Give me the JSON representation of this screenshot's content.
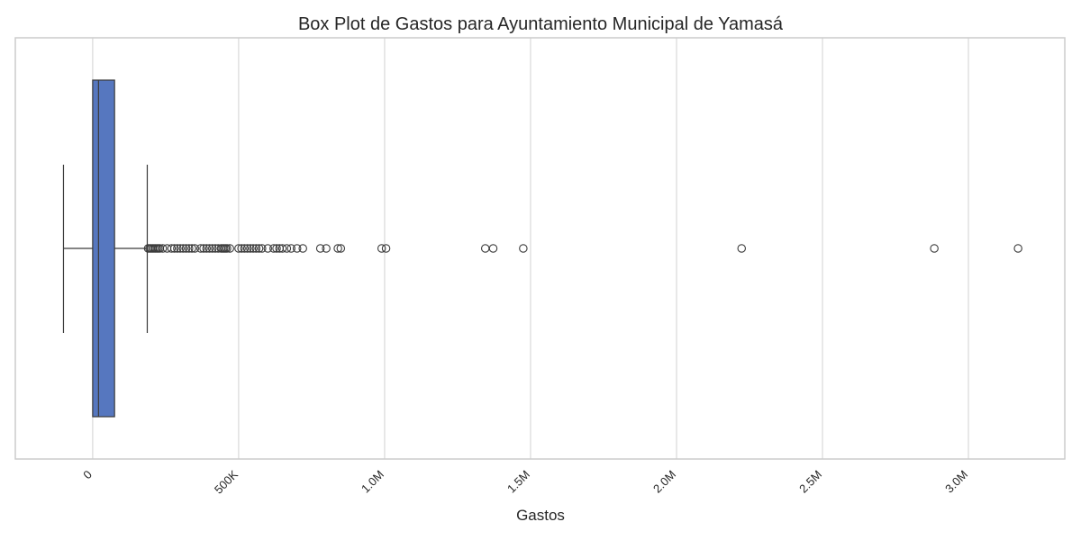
{
  "chart_data": {
    "type": "box",
    "title": "Box Plot de Gastos para Ayuntamiento Municipal de Yamasá",
    "xlabel": "Gastos",
    "ylabel": "",
    "orientation": "horizontal",
    "xlim": [
      -265000,
      3330000
    ],
    "x_ticks": [
      {
        "value": 0,
        "label": "0"
      },
      {
        "value": 500000,
        "label": "500K"
      },
      {
        "value": 1000000,
        "label": "1.0M"
      },
      {
        "value": 1500000,
        "label": "1.5M"
      },
      {
        "value": 2000000,
        "label": "2.0M"
      },
      {
        "value": 2500000,
        "label": "2.5M"
      },
      {
        "value": 3000000,
        "label": "3.0M"
      }
    ],
    "tick_label_rotation": -45,
    "grid": "vertical",
    "box": {
      "whisker_low": -100000,
      "q1": 0,
      "median": 20000,
      "q3": 75000,
      "whisker_high": 187000,
      "outliers": [
        190000,
        195000,
        200000,
        205000,
        210000,
        215000,
        220000,
        225000,
        230000,
        240000,
        255000,
        270000,
        280000,
        290000,
        300000,
        310000,
        320000,
        330000,
        340000,
        350000,
        370000,
        380000,
        390000,
        400000,
        410000,
        420000,
        430000,
        440000,
        445000,
        450000,
        455000,
        460000,
        470000,
        500000,
        510000,
        520000,
        530000,
        540000,
        550000,
        560000,
        570000,
        580000,
        600000,
        620000,
        630000,
        640000,
        650000,
        665000,
        680000,
        700000,
        720000,
        780000,
        800000,
        840000,
        850000,
        990000,
        1005000,
        1345000,
        1372000,
        1475000,
        2223000,
        2883000,
        3170000
      ]
    },
    "colors": {
      "box_fill": "#5677bf",
      "box_edge": "#3b3b3b",
      "grid": "#d9d9d9",
      "frame": "#cccccc"
    }
  }
}
